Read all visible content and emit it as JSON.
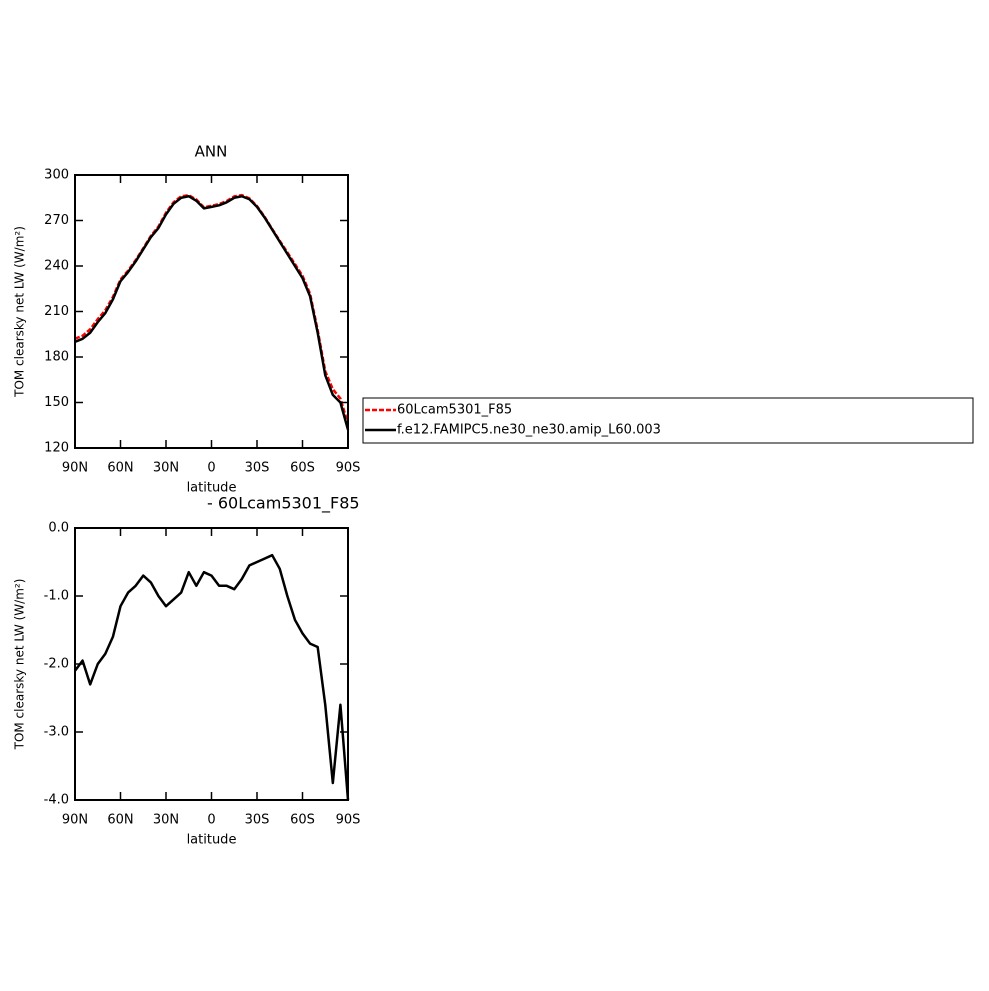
{
  "chart_data": [
    {
      "type": "line",
      "title": "ANN",
      "xlabel": "latitude",
      "ylabel": "TOM clearsky net LW (W/m²)",
      "x": [
        90,
        85,
        80,
        75,
        70,
        65,
        60,
        55,
        50,
        45,
        40,
        35,
        30,
        25,
        20,
        15,
        10,
        5,
        0,
        -5,
        -10,
        -15,
        -20,
        -25,
        -30,
        -35,
        -40,
        -45,
        -50,
        -55,
        -60,
        -65,
        -70,
        -75,
        -80,
        -85,
        -90
      ],
      "series": [
        {
          "name": "60Lcam5301_F85",
          "color": "#ff0000",
          "dash": true,
          "values": [
            192.1,
            194,
            198.3,
            205,
            210.85,
            219.6,
            231.15,
            236.95,
            243.85,
            251.7,
            259.8,
            266,
            275.15,
            282.05,
            285.95,
            286.65,
            283.85,
            278.65,
            279.7,
            280.85,
            282.85,
            285.9,
            286.75,
            284.55,
            279.5,
            272.45,
            264.4,
            256.6,
            249,
            241.35,
            233.55,
            221.7,
            197.75,
            170.6,
            158.75,
            152.6,
            136
          ]
        },
        {
          "name": "f.e12.FAMIPC5.ne30_ne30.amip_L60.003",
          "color": "#000000",
          "dash": false,
          "values": [
            190,
            192,
            196,
            203,
            209,
            218,
            230,
            236,
            243,
            251,
            259,
            265,
            274,
            281,
            285,
            286,
            283,
            278,
            279,
            280,
            282,
            285,
            286,
            284,
            279,
            272,
            264,
            256,
            248,
            240,
            232,
            220,
            196,
            168,
            155,
            150,
            132
          ]
        }
      ],
      "xlim": [
        90,
        -90
      ],
      "xticks": [
        {
          "value": 90,
          "label": "90N"
        },
        {
          "value": 60,
          "label": "60N"
        },
        {
          "value": 30,
          "label": "30N"
        },
        0,
        {
          "value": -30,
          "label": "30S"
        },
        {
          "value": -60,
          "label": "60S"
        },
        {
          "value": -90,
          "label": "90S"
        }
      ],
      "ylim": [
        120,
        300
      ],
      "yticks": [
        120,
        150,
        180,
        210,
        240,
        270,
        300
      ]
    },
    {
      "type": "line",
      "title": "- 60Lcam5301_F85",
      "xlabel": "latitude",
      "ylabel": "TOM clearsky net LW (W/m²)",
      "x": [
        90,
        85,
        80,
        75,
        70,
        65,
        60,
        55,
        50,
        45,
        40,
        35,
        30,
        25,
        20,
        15,
        10,
        5,
        0,
        -5,
        -10,
        -15,
        -20,
        -25,
        -30,
        -35,
        -40,
        -45,
        -50,
        -55,
        -60,
        -65,
        -70,
        -75,
        -80,
        -85,
        -90
      ],
      "color": "#000000",
      "values": [
        -2.1,
        -1.95,
        -2.3,
        -2,
        -1.85,
        -1.6,
        -1.15,
        -0.95,
        -0.85,
        -0.7,
        -0.8,
        -1,
        -1.15,
        -1.05,
        -0.95,
        -0.65,
        -0.85,
        -0.65,
        -0.7,
        -0.85,
        -0.85,
        -0.9,
        -0.75,
        -0.55,
        -0.5,
        -0.45,
        -0.4,
        -0.6,
        -1,
        -1.35,
        -1.55,
        -1.7,
        -1.75,
        -2.6,
        -3.75,
        -2.6,
        -4
      ],
      "xlim": [
        90,
        -90
      ],
      "xticks": [
        {
          "value": 90,
          "label": "90N"
        },
        {
          "value": 60,
          "label": "60N"
        },
        {
          "value": 30,
          "label": "30N"
        },
        0,
        {
          "value": -30,
          "label": "30S"
        },
        {
          "value": -60,
          "label": "60S"
        },
        {
          "value": -90,
          "label": "90S"
        }
      ],
      "ylim": [
        -4,
        0
      ],
      "yticks": [
        {
          "value": -4,
          "label": "-4.0"
        },
        {
          "value": -3,
          "label": "-3.0"
        },
        {
          "value": -2,
          "label": "-2.0"
        },
        {
          "value": -1,
          "label": "-1.0"
        },
        {
          "value": 0,
          "label": "0.0"
        }
      ]
    }
  ]
}
